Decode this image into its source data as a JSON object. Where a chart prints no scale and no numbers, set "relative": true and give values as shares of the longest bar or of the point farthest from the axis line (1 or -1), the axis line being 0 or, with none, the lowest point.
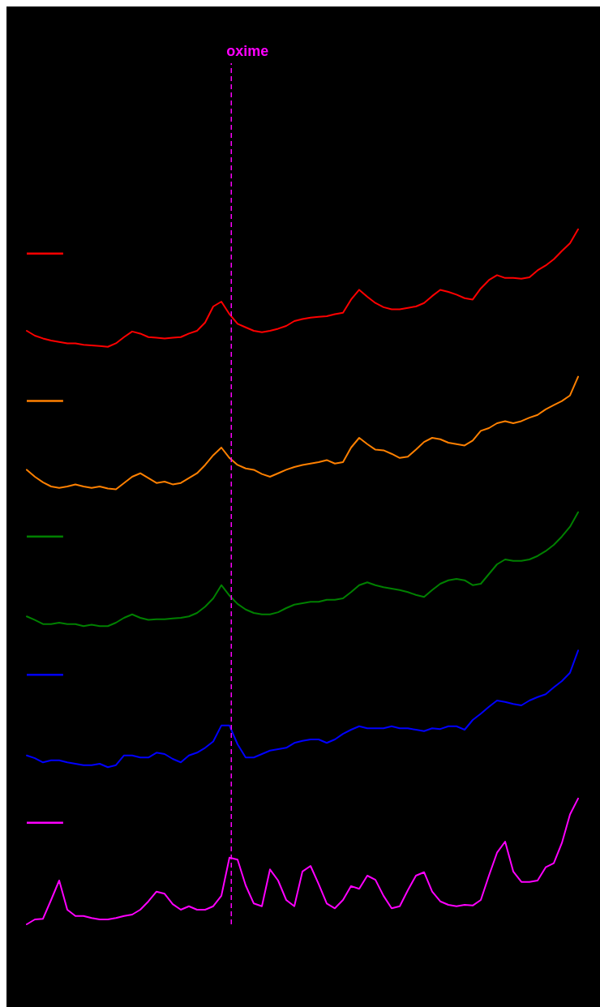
{
  "chart_data": {
    "type": "line",
    "relative": true,
    "annotations": [
      "oxime"
    ],
    "categories": [
      null,
      null,
      null,
      null,
      null,
      null,
      null,
      null,
      null,
      null,
      null,
      null,
      null,
      null,
      null,
      null,
      null,
      null,
      null,
      null,
      null,
      null,
      null,
      null,
      null,
      null,
      null,
      null,
      null,
      null,
      null,
      null,
      null,
      null,
      null,
      null,
      null,
      null,
      null,
      null,
      null,
      null,
      null,
      null,
      null,
      null,
      null,
      null,
      null,
      null,
      null,
      null,
      null,
      null,
      null,
      null,
      null,
      null,
      null,
      null,
      null,
      null,
      null,
      null,
      null,
      null,
      null,
      null,
      null
    ],
    "series": [
      {
        "color": "#ff0000",
        "values": [
          0.854,
          0.847,
          0.843,
          0.84,
          0.838,
          0.836,
          0.836,
          0.834,
          0.833,
          0.832,
          0.831,
          0.836,
          0.845,
          0.853,
          0.85,
          0.845,
          0.844,
          0.843,
          0.844,
          0.845,
          0.85,
          0.854,
          0.866,
          0.889,
          0.896,
          0.878,
          0.864,
          0.859,
          0.854,
          0.852,
          0.854,
          0.857,
          0.861,
          0.868,
          0.871,
          0.873,
          0.874,
          0.875,
          0.878,
          0.88,
          0.899,
          0.913,
          0.903,
          0.894,
          0.888,
          0.885,
          0.885,
          0.887,
          0.889,
          0.894,
          0.904,
          0.913,
          0.91,
          0.906,
          0.901,
          0.899,
          0.915,
          0.927,
          0.934,
          0.93,
          0.93,
          0.929,
          0.931,
          0.941,
          0.948,
          0.957,
          0.969,
          0.98,
          1
        ]
      },
      {
        "color": "#ff8000",
        "values": [
          0.654,
          0.644,
          0.636,
          0.63,
          0.628,
          0.63,
          0.633,
          0.63,
          0.628,
          0.63,
          0.627,
          0.626,
          0.635,
          0.644,
          0.649,
          0.642,
          0.635,
          0.637,
          0.633,
          0.635,
          0.642,
          0.649,
          0.661,
          0.675,
          0.686,
          0.671,
          0.661,
          0.656,
          0.654,
          0.648,
          0.644,
          0.649,
          0.654,
          0.658,
          0.661,
          0.663,
          0.665,
          0.668,
          0.663,
          0.665,
          0.686,
          0.7,
          0.691,
          0.683,
          0.682,
          0.677,
          0.671,
          0.673,
          0.683,
          0.694,
          0.7,
          0.698,
          0.693,
          0.691,
          0.689,
          0.696,
          0.71,
          0.714,
          0.721,
          0.724,
          0.721,
          0.724,
          0.729,
          0.733,
          0.741,
          0.747,
          0.753,
          0.761,
          0.788
        ]
      },
      {
        "color": "#008000",
        "values": [
          0.443,
          0.438,
          0.432,
          0.432,
          0.434,
          0.432,
          0.432,
          0.429,
          0.431,
          0.429,
          0.429,
          0.434,
          0.441,
          0.446,
          0.441,
          0.438,
          0.439,
          0.439,
          0.44,
          0.441,
          0.443,
          0.448,
          0.457,
          0.469,
          0.488,
          0.473,
          0.461,
          0.453,
          0.448,
          0.446,
          0.446,
          0.449,
          0.455,
          0.46,
          0.462,
          0.464,
          0.464,
          0.467,
          0.467,
          0.469,
          0.478,
          0.488,
          0.492,
          0.488,
          0.485,
          0.483,
          0.481,
          0.478,
          0.474,
          0.471,
          0.481,
          0.49,
          0.495,
          0.497,
          0.495,
          0.488,
          0.49,
          0.504,
          0.518,
          0.525,
          0.523,
          0.523,
          0.525,
          0.53,
          0.537,
          0.546,
          0.558,
          0.572,
          0.593
        ]
      },
      {
        "color": "#0000ff",
        "values": [
          0.243,
          0.239,
          0.233,
          0.236,
          0.236,
          0.233,
          0.231,
          0.229,
          0.229,
          0.231,
          0.226,
          0.229,
          0.243,
          0.243,
          0.24,
          0.24,
          0.247,
          0.245,
          0.238,
          0.233,
          0.243,
          0.247,
          0.254,
          0.263,
          0.286,
          0.286,
          0.259,
          0.24,
          0.24,
          0.245,
          0.25,
          0.252,
          0.254,
          0.261,
          0.264,
          0.266,
          0.266,
          0.261,
          0.266,
          0.274,
          0.28,
          0.285,
          0.282,
          0.282,
          0.282,
          0.285,
          0.282,
          0.282,
          0.28,
          0.278,
          0.282,
          0.281,
          0.285,
          0.285,
          0.28,
          0.294,
          0.303,
          0.313,
          0.322,
          0.32,
          0.317,
          0.315,
          0.322,
          0.327,
          0.331,
          0.341,
          0.35,
          0.362,
          0.394
        ]
      },
      {
        "color": "#ff00ff",
        "values": [
          0,
          0.007,
          0.008,
          0.035,
          0.063,
          0.021,
          0.012,
          0.012,
          0.009,
          0.007,
          0.007,
          0.009,
          0.012,
          0.014,
          0.021,
          0.033,
          0.047,
          0.044,
          0.029,
          0.021,
          0.026,
          0.021,
          0.021,
          0.026,
          0.041,
          0.096,
          0.093,
          0.056,
          0.03,
          0.026,
          0.079,
          0.063,
          0.035,
          0.026,
          0.076,
          0.084,
          0.058,
          0.03,
          0.023,
          0.035,
          0.055,
          0.051,
          0.07,
          0.064,
          0.041,
          0.023,
          0.026,
          0.049,
          0.07,
          0.075,
          0.047,
          0.033,
          0.028,
          0.026,
          0.028,
          0.027,
          0.035,
          0.07,
          0.103,
          0.119,
          0.076,
          0.061,
          0.061,
          0.063,
          0.082,
          0.088,
          0.117,
          0.158,
          0.181
        ]
      }
    ]
  }
}
